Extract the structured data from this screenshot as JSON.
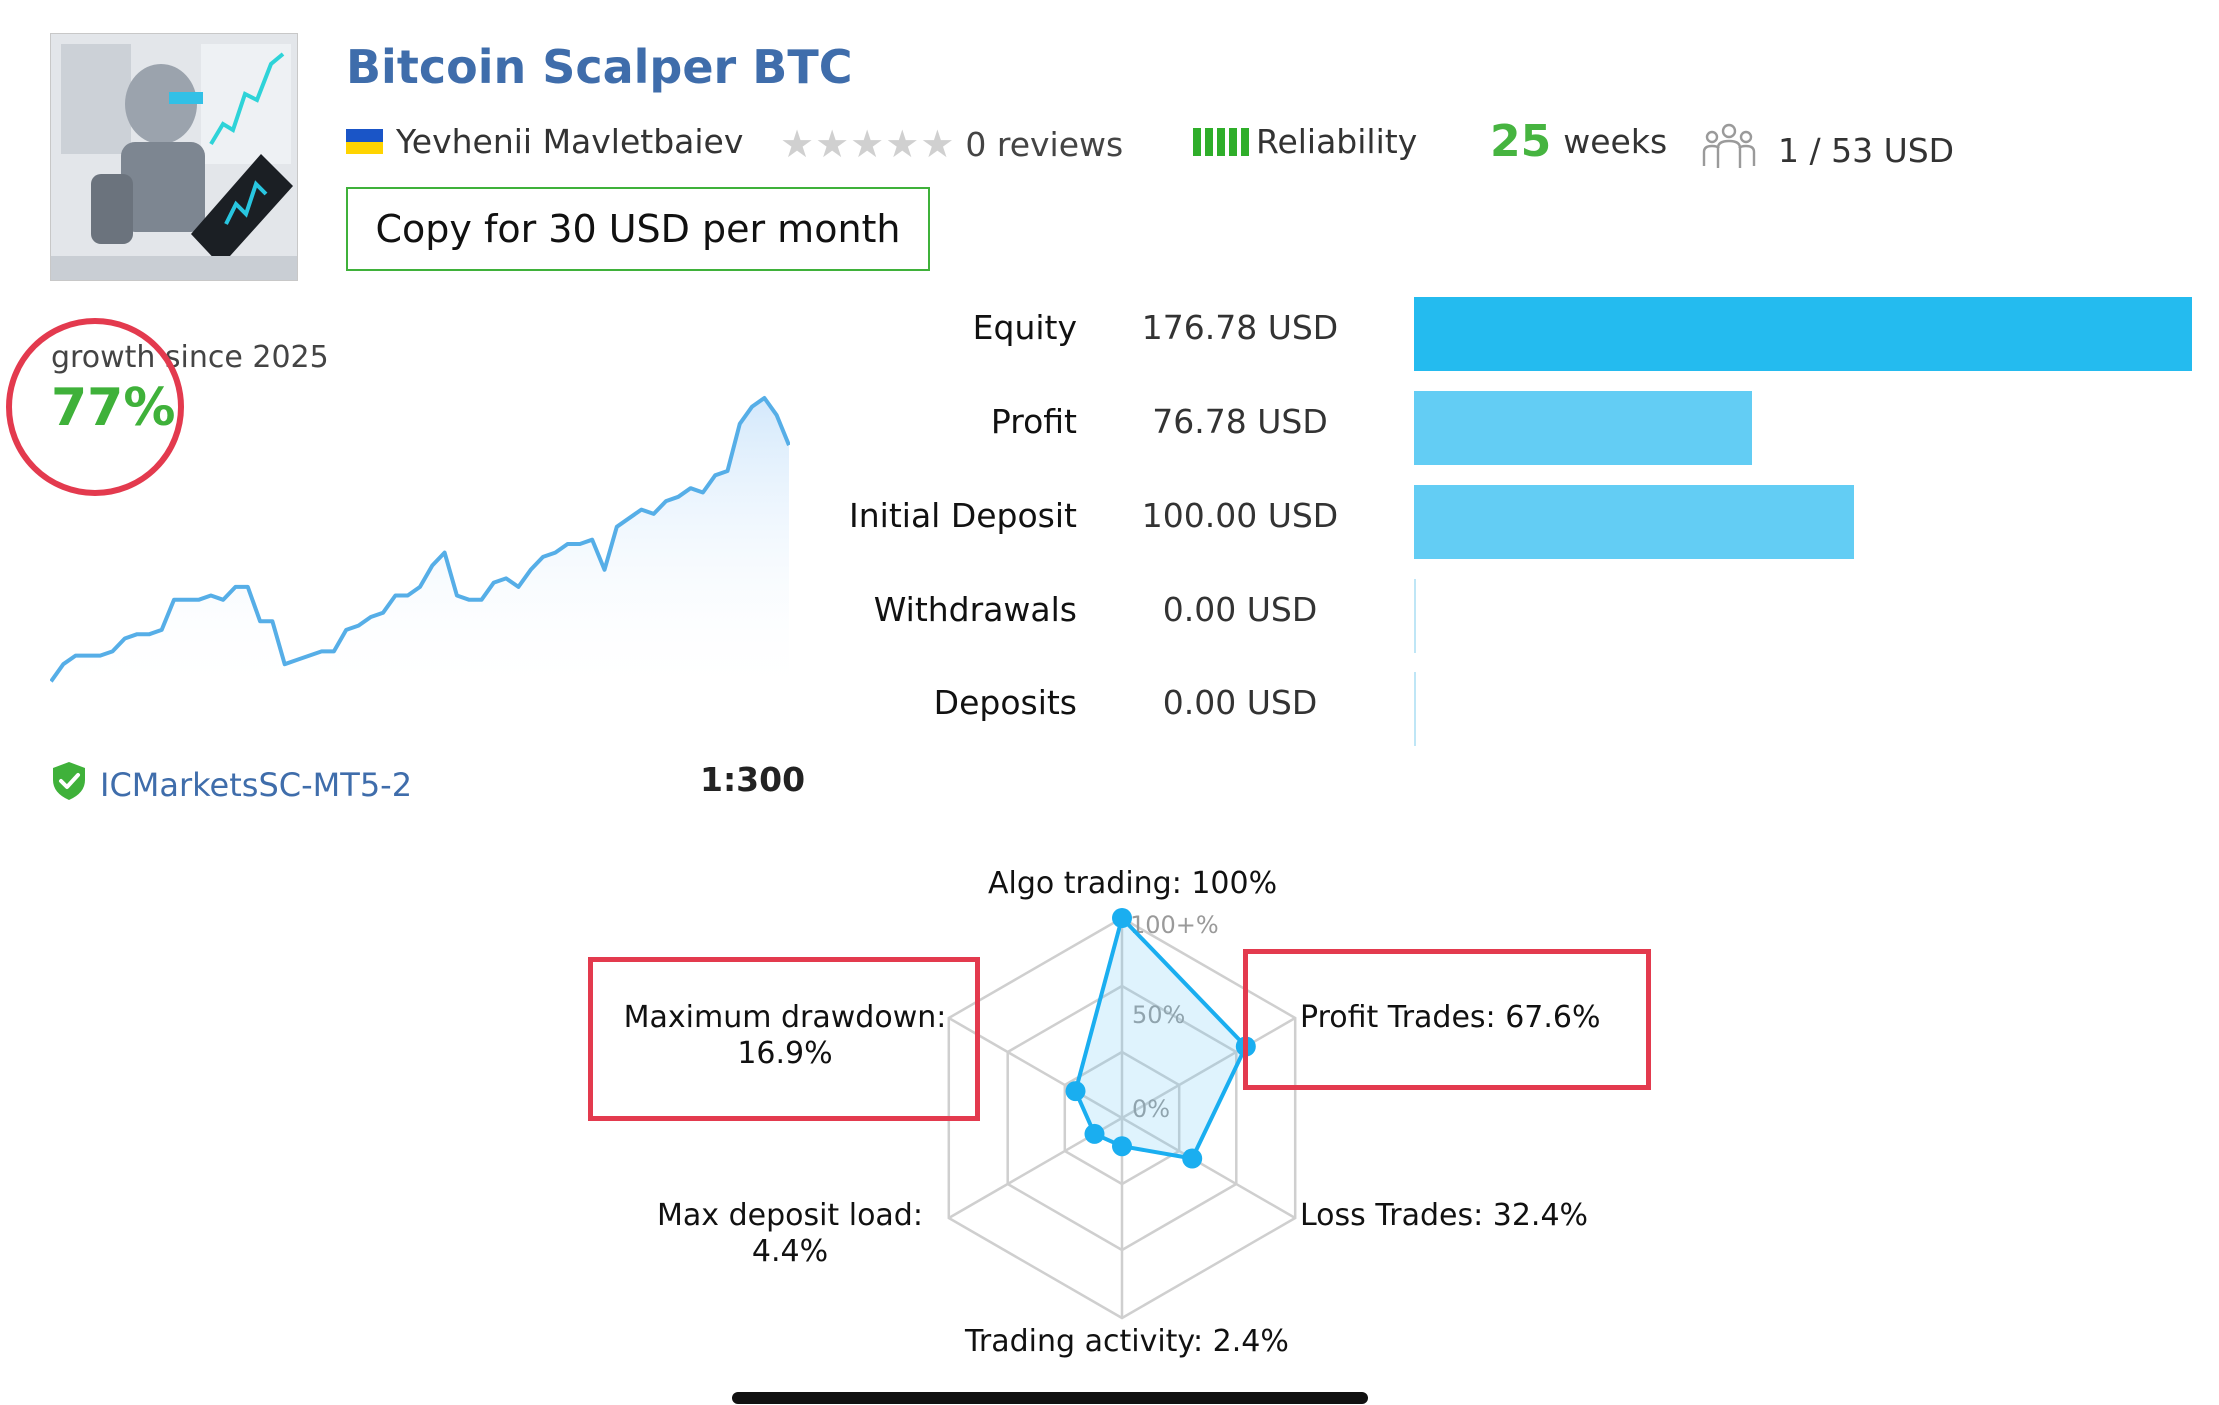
{
  "header": {
    "title": "Bitcoin Scalper BTC",
    "author": "Yevhenii Mavletbaiev",
    "reviews": "0 reviews",
    "reliability_label": "Reliability",
    "weeks_number": "25",
    "weeks_label": "weeks",
    "subscribers": "1 / 53 USD",
    "copy_button": "Copy for 30 USD per month"
  },
  "growth": {
    "label": "growth since 2025",
    "value": "77%",
    "chart_data": {
      "type": "area",
      "values": [
        2,
        6,
        8,
        8,
        8,
        9,
        12,
        13,
        13,
        14,
        21,
        21,
        21,
        22,
        21,
        24,
        24,
        16,
        16,
        6,
        7,
        8,
        9,
        9,
        14,
        15,
        17,
        18,
        22,
        22,
        24,
        29,
        32,
        22,
        21,
        21,
        25,
        26,
        24,
        28,
        31,
        32,
        34,
        34,
        35,
        28,
        38,
        40,
        42,
        41,
        44,
        45,
        47,
        46,
        50,
        51,
        62,
        66,
        68,
        64,
        57
      ]
    },
    "accent_color": "#56aee7"
  },
  "stats": [
    {
      "label": "Equity",
      "value": "176.78 USD",
      "amount": 176.78
    },
    {
      "label": "Profit",
      "value": "76.78 USD",
      "amount": 76.78
    },
    {
      "label": "Initial Deposit",
      "value": "100.00 USD",
      "amount": 100.0
    },
    {
      "label": "Withdrawals",
      "value": "0.00 USD",
      "amount": 0
    },
    {
      "label": "Deposits",
      "value": "0.00 USD",
      "amount": 0
    }
  ],
  "server": {
    "name": "ICMarketsSC-MT5-2",
    "leverage": "1:300"
  },
  "radar": {
    "labels": {
      "algo": "Algo trading: 100%",
      "profit": "Profit Trades: 67.6%",
      "loss": "Loss Trades: 32.4%",
      "activity": "Trading activity: 2.4%",
      "deposit_load_1": "Max deposit load:",
      "deposit_load_2": "4.4%",
      "drawdown_1": "Maximum drawdown:",
      "drawdown_2": "16.9%"
    },
    "ticks": [
      "100+%",
      "50%",
      "0%"
    ],
    "chart_data": {
      "type": "radar",
      "axes": [
        "Algo trading",
        "Profit Trades",
        "Loss Trades",
        "Trading activity",
        "Max deposit load",
        "Maximum drawdown"
      ],
      "values": [
        100,
        67.6,
        32.4,
        2.4,
        4.4,
        16.9
      ],
      "rmax": 100
    }
  }
}
